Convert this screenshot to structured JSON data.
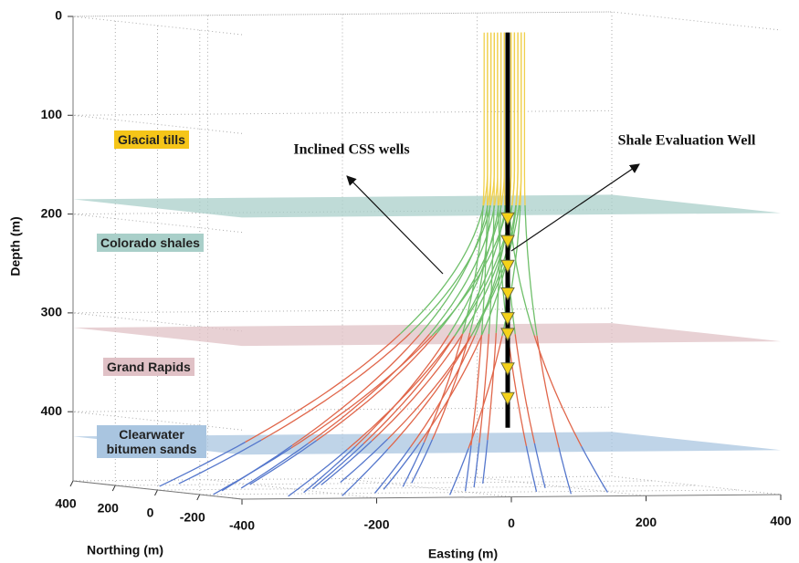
{
  "chart_data": {
    "type": "well-trajectories-3d",
    "xlabel": "Easting (m)",
    "ylabel": "Northing (m)",
    "zlabel": "Depth (m)",
    "xlim": [
      -400,
      400
    ],
    "xticks": [
      -400,
      -200,
      0,
      200,
      400
    ],
    "ylim": [
      -400,
      400
    ],
    "yticks": [
      -200,
      0,
      200,
      400
    ],
    "zlim": [
      0,
      470
    ],
    "zticks": [
      0,
      100,
      200,
      300,
      400
    ],
    "grid": true,
    "formations": [
      {
        "name": "Glacial tills",
        "color": "#f5c518",
        "well_color": "#f0d04c",
        "top": 0
      },
      {
        "name": "Colorado shales",
        "color": "#a9cfc9",
        "well_color": "#6fbf6a",
        "top": 185
      },
      {
        "name": "Grand Rapids",
        "color": "#e0c1c6",
        "well_color": "#e0664a",
        "top": 315
      },
      {
        "name": "Clearwater bitumen sands",
        "color": "#a9c5e0",
        "well_color": "#5577cc",
        "top": 425
      }
    ],
    "well_top_depth": 10,
    "well_bottom_depth": 470,
    "kickoff_depth": 150,
    "wells": [
      {
        "top_easting": 90,
        "bottom_easting": -350,
        "bottom_northing": 150
      },
      {
        "top_easting": 95,
        "bottom_easting": -320,
        "bottom_northing": -50
      },
      {
        "top_easting": 100,
        "bottom_easting": -290,
        "bottom_northing": 250
      },
      {
        "top_easting": 105,
        "bottom_easting": -260,
        "bottom_northing": 50
      },
      {
        "top_easting": 110,
        "bottom_easting": -230,
        "bottom_northing": -150
      },
      {
        "top_easting": 115,
        "bottom_easting": -200,
        "bottom_northing": 200
      },
      {
        "top_easting": 120,
        "bottom_easting": -170,
        "bottom_northing": 0
      },
      {
        "top_easting": 125,
        "bottom_easting": -140,
        "bottom_northing": -200
      },
      {
        "top_easting": 130,
        "bottom_easting": -110,
        "bottom_northing": 150
      },
      {
        "top_easting": 135,
        "bottom_easting": -80,
        "bottom_northing": -50
      },
      {
        "top_easting": 140,
        "bottom_easting": -50,
        "bottom_northing": 250
      },
      {
        "top_easting": 85,
        "bottom_easting": -20,
        "bottom_northing": 50
      },
      {
        "top_easting": 90,
        "bottom_easting": 10,
        "bottom_northing": -150
      },
      {
        "top_easting": 95,
        "bottom_easting": 40,
        "bottom_northing": 200
      },
      {
        "top_easting": 100,
        "bottom_easting": 70,
        "bottom_northing": 0
      },
      {
        "top_easting": 105,
        "bottom_easting": 100,
        "bottom_northing": -200
      },
      {
        "top_easting": 110,
        "bottom_easting": 130,
        "bottom_northing": 150
      },
      {
        "top_easting": 115,
        "bottom_easting": 160,
        "bottom_northing": -50
      },
      {
        "top_easting": 120,
        "bottom_easting": 190,
        "bottom_northing": -250
      },
      {
        "top_easting": 125,
        "bottom_easting": -380,
        "bottom_northing": -200
      },
      {
        "top_easting": 130,
        "bottom_easting": -300,
        "bottom_northing": -300
      },
      {
        "top_easting": 135,
        "bottom_easting": -220,
        "bottom_northing": -300
      },
      {
        "top_easting": 140,
        "bottom_easting": -60,
        "bottom_northing": -300
      },
      {
        "top_easting": 145,
        "bottom_easting": 120,
        "bottom_northing": -300
      }
    ],
    "evaluation_well": {
      "easting": 120,
      "northing": 0,
      "top_depth": 10,
      "bottom_depth": 410,
      "sensor_depths": [
        198,
        221,
        246,
        274,
        299,
        315,
        350,
        380
      ]
    },
    "annotations": [
      "Inclined CSS wells",
      "Shale Evaluation Well"
    ]
  }
}
